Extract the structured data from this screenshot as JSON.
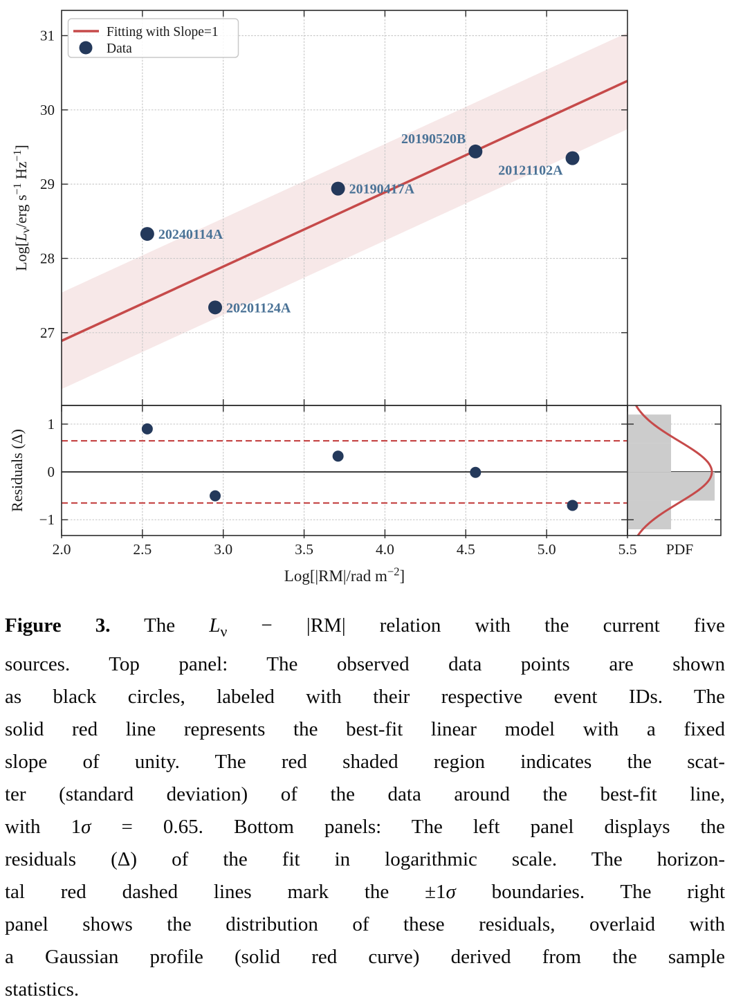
{
  "chart_data": [
    {
      "id": "top_panel",
      "type": "scatter",
      "title": "",
      "ylabel": "Log[Lν/erg s⁻¹ Hz⁻¹]",
      "ylabel_segments": [
        {
          "t": "Log["
        },
        {
          "t": "L",
          "i": true
        },
        {
          "t": "ν",
          "sub": true
        },
        {
          "t": "/erg s"
        },
        {
          "t": "−1",
          "sup": true
        },
        {
          "t": " Hz"
        },
        {
          "t": "−1",
          "sup": true
        },
        {
          "t": "]"
        }
      ],
      "xlim": [
        2.0,
        5.5
      ],
      "ylim": [
        26.02,
        31.34
      ],
      "yticks": [
        27,
        28,
        29,
        30,
        31
      ],
      "xgrid": [
        2.5,
        3.0,
        3.5,
        4.0,
        4.5,
        5.0
      ],
      "grid": "dotted",
      "legend": {
        "position": "upper-left",
        "entries": [
          {
            "label": "Fitting with Slope=1",
            "marker": "line"
          },
          {
            "label": "Data",
            "marker": "circle"
          }
        ]
      },
      "fit_line": {
        "slope": 1,
        "intercept": 24.89,
        "sigma_band": 0.65
      },
      "points": [
        {
          "id": "20240114A",
          "x": 2.53,
          "y": 28.33,
          "label_side": "right"
        },
        {
          "id": "20201124A",
          "x": 2.95,
          "y": 27.34,
          "label_side": "right"
        },
        {
          "id": "20190417A",
          "x": 3.71,
          "y": 28.94,
          "label_side": "right"
        },
        {
          "id": "20190520B",
          "x": 4.56,
          "y": 29.44,
          "label_side": "above-left"
        },
        {
          "id": "20121102A",
          "x": 5.16,
          "y": 29.35,
          "label_side": "below-left"
        }
      ]
    },
    {
      "id": "residual_panel",
      "type": "scatter",
      "xlabel": "Log[|RM|/rad m⁻²]",
      "xlabel_segments": [
        {
          "t": "Log[|RM|/rad m"
        },
        {
          "t": "−2",
          "sup": true
        },
        {
          "t": "]"
        }
      ],
      "ylabel": "Residuals (Δ)",
      "ylabel_segments": [
        {
          "t": "Residuals (Δ)"
        }
      ],
      "xticks": [
        2.0,
        2.5,
        3.0,
        3.5,
        4.0,
        4.5,
        5.0,
        5.5
      ],
      "yticks": [
        -1,
        0,
        1
      ],
      "ylim": [
        -1.33,
        1.39
      ],
      "zero_line": 0,
      "sigma_lines": [
        0.65,
        -0.65
      ],
      "points": [
        {
          "id": "20240114A",
          "x": 2.53,
          "residual": 0.9
        },
        {
          "id": "20201124A",
          "x": 2.95,
          "residual": -0.5
        },
        {
          "id": "20190417A",
          "x": 3.71,
          "residual": 0.33
        },
        {
          "id": "20190520B",
          "x": 4.56,
          "residual": -0.01
        },
        {
          "id": "20121102A",
          "x": 5.16,
          "residual": -0.7
        }
      ]
    },
    {
      "id": "pdf_panel",
      "type": "histogram",
      "xlabel": "PDF",
      "orientation": "horizontal",
      "bin_edges": [
        -1.2,
        -0.6,
        0.0,
        0.6,
        1.2
      ],
      "counts": [
        1,
        2,
        1,
        1
      ],
      "gaussian": {
        "mean": 0.0,
        "sigma": 0.65
      },
      "grid_yticks": [
        -1,
        1
      ]
    }
  ],
  "colors": {
    "fit_red": "#c64a4a",
    "band_pink": "#f7e8e8",
    "point_navy": "#24395b",
    "label_blue": "#4a7296",
    "hist_gray": "#cccccc",
    "grid_gray": "#c9c9c9",
    "frame_dark": "#2b2b2b",
    "text_dark": "#1a1a1a"
  },
  "caption": {
    "lines": [
      {
        "justify": true,
        "segments": [
          {
            "t": "Figure 3.",
            "b": true
          },
          {
            "t": "  The "
          },
          {
            "t": "L",
            "i": true
          },
          {
            "t": "ν",
            "sub": true
          },
          {
            "t": " − |RM| relation with the current five"
          }
        ]
      },
      {
        "justify": true,
        "segments": [
          {
            "t": "sources.  Top panel:  The observed data points are shown"
          }
        ]
      },
      {
        "justify": true,
        "segments": [
          {
            "t": "as black circles, labeled with their respective event IDs. The"
          }
        ]
      },
      {
        "justify": true,
        "segments": [
          {
            "t": "solid red line represents the best-fit linear model with a fixed"
          }
        ]
      },
      {
        "justify": true,
        "segments": [
          {
            "t": "slope of unity.  The red shaded region indicates the scat-"
          }
        ]
      },
      {
        "justify": true,
        "segments": [
          {
            "t": "ter (standard deviation) of the data around the best-fit line,"
          }
        ]
      },
      {
        "justify": true,
        "segments": [
          {
            "t": "with 1"
          },
          {
            "t": "σ",
            "i": true
          },
          {
            "t": " = 0.65.  Bottom panels:  The left panel displays the"
          }
        ]
      },
      {
        "justify": true,
        "segments": [
          {
            "t": "residuals (Δ) of the fit in logarithmic scale.  The horizon-"
          }
        ]
      },
      {
        "justify": true,
        "segments": [
          {
            "t": "tal red dashed lines mark the ±1"
          },
          {
            "t": "σ",
            "i": true
          },
          {
            "t": " boundaries.  The right"
          }
        ]
      },
      {
        "justify": true,
        "segments": [
          {
            "t": "panel shows the distribution of these residuals, overlaid with"
          }
        ]
      },
      {
        "justify": true,
        "segments": [
          {
            "t": "a Gaussian profile (solid red curve) derived from the sample"
          }
        ]
      },
      {
        "justify": false,
        "segments": [
          {
            "t": "statistics."
          }
        ]
      }
    ]
  }
}
